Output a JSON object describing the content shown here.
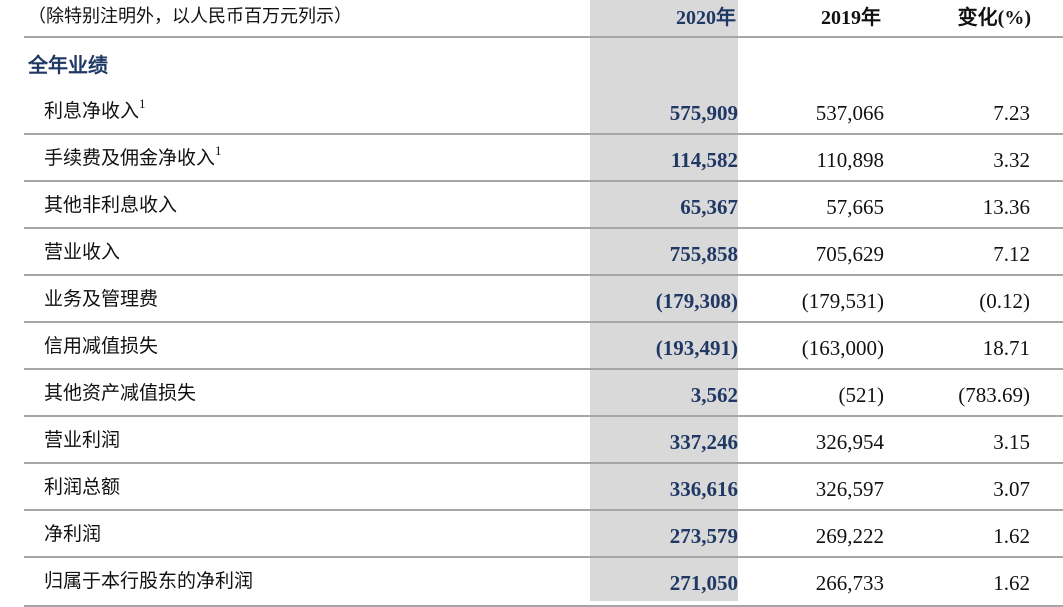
{
  "header": {
    "note": "（除特别注明外，以人民币百万元列示）",
    "col_2020_num": "2020",
    "col_2020_suffix": "年",
    "col_2019_num": "2019",
    "col_2019_suffix": "年",
    "col_change_prefix": "变化",
    "col_change_suffix": "(%)"
  },
  "section": {
    "title": "全年业绩"
  },
  "rows": [
    {
      "label": "利息净收入",
      "sup": "1",
      "v2020": "575,909",
      "v2019": "537,066",
      "change": "7.23"
    },
    {
      "label": "手续费及佣金净收入",
      "sup": "1",
      "v2020": "114,582",
      "v2019": "110,898",
      "change": "3.32"
    },
    {
      "label": "其他非利息收入",
      "sup": "",
      "v2020": "65,367",
      "v2019": "57,665",
      "change": "13.36"
    },
    {
      "label": "营业收入",
      "sup": "",
      "v2020": "755,858",
      "v2019": "705,629",
      "change": "7.12"
    },
    {
      "label": "业务及管理费",
      "sup": "",
      "v2020": "(179,308)",
      "v2019": "(179,531)",
      "change": "(0.12)"
    },
    {
      "label": "信用减值损失",
      "sup": "",
      "v2020": "(193,491)",
      "v2019": "(163,000)",
      "change": "18.71"
    },
    {
      "label": "其他资产减值损失",
      "sup": "",
      "v2020": "3,562",
      "v2019": "(521)",
      "change": "(783.69)"
    },
    {
      "label": "营业利润",
      "sup": "",
      "v2020": "337,246",
      "v2019": "326,954",
      "change": "3.15"
    },
    {
      "label": "利润总额",
      "sup": "",
      "v2020": "336,616",
      "v2019": "326,597",
      "change": "3.07"
    },
    {
      "label": "净利润",
      "sup": "",
      "v2020": "273,579",
      "v2019": "269,222",
      "change": "1.62"
    },
    {
      "label": "归属于本行股东的净利润",
      "sup": "",
      "v2020": "271,050",
      "v2019": "266,733",
      "change": "1.62"
    }
  ],
  "colors": {
    "highlight_column": "#d9d9d9",
    "accent_text": "#1f3864",
    "separator": "#a6a6a6"
  }
}
